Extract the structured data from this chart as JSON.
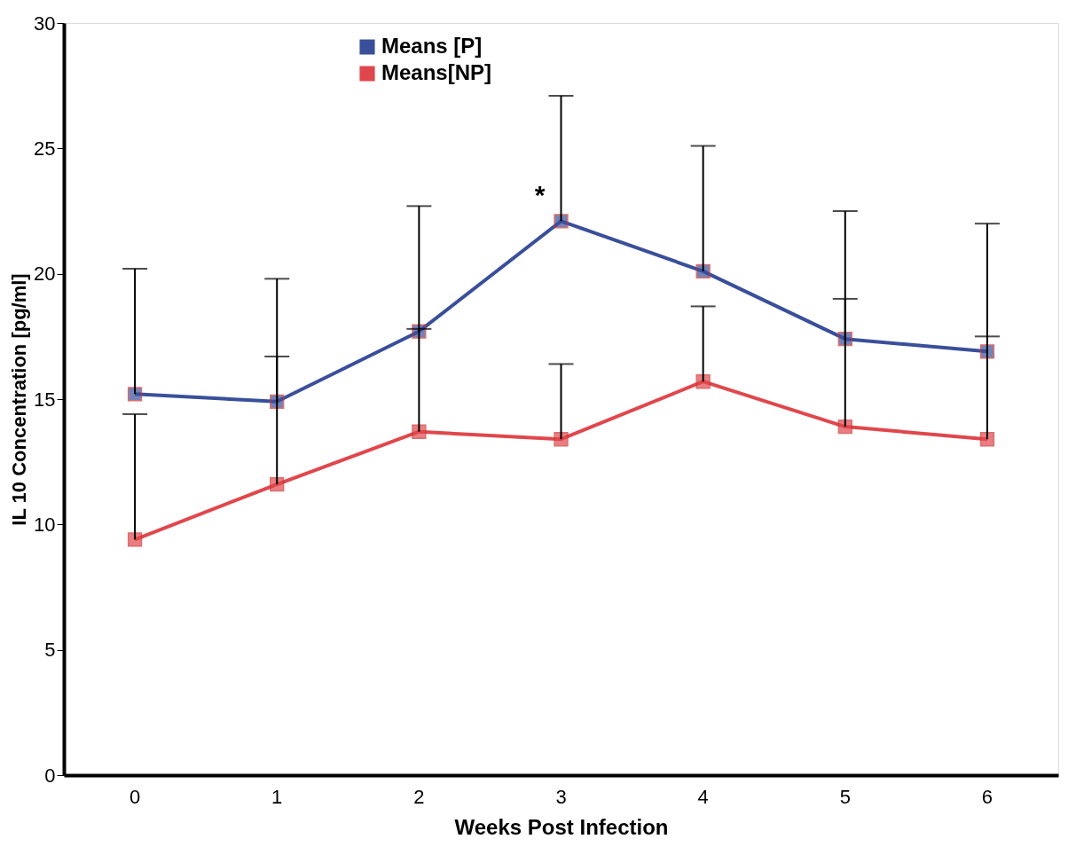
{
  "chart_data": {
    "type": "line",
    "xlabel": "Weeks Post Infection",
    "ylabel": "IL 10 Concentration [pg/ml]",
    "categories": [
      "0",
      "1",
      "2",
      "3",
      "4",
      "5",
      "6"
    ],
    "series": [
      {
        "name": "Means [P]",
        "color": "#3a4f9a",
        "values": [
          15.2,
          14.9,
          17.7,
          22.1,
          20.1,
          17.4,
          16.9
        ],
        "errors": [
          [
            15.2,
            20.2
          ],
          [
            14.9,
            19.8
          ],
          [
            17.7,
            22.7
          ],
          [
            22.1,
            27.1
          ],
          [
            20.1,
            25.1
          ],
          [
            17.4,
            22.5
          ],
          [
            16.9,
            22.0
          ]
        ]
      },
      {
        "name": "Means[NP]",
        "color": "#e0474c",
        "values": [
          9.4,
          11.6,
          13.7,
          13.4,
          15.7,
          13.9,
          13.4
        ],
        "errors": [
          [
            9.4,
            14.4
          ],
          [
            11.6,
            16.7
          ],
          [
            13.7,
            17.8
          ],
          [
            13.4,
            16.4
          ],
          [
            15.7,
            18.7
          ],
          [
            13.9,
            19.0
          ],
          [
            13.4,
            17.5
          ]
        ]
      }
    ],
    "ylim": [
      0,
      30
    ],
    "yticks": [
      0,
      5,
      10,
      15,
      20,
      25,
      30
    ],
    "grid": false,
    "legend": "top left",
    "marker": "square",
    "annotations": [
      "*"
    ]
  }
}
